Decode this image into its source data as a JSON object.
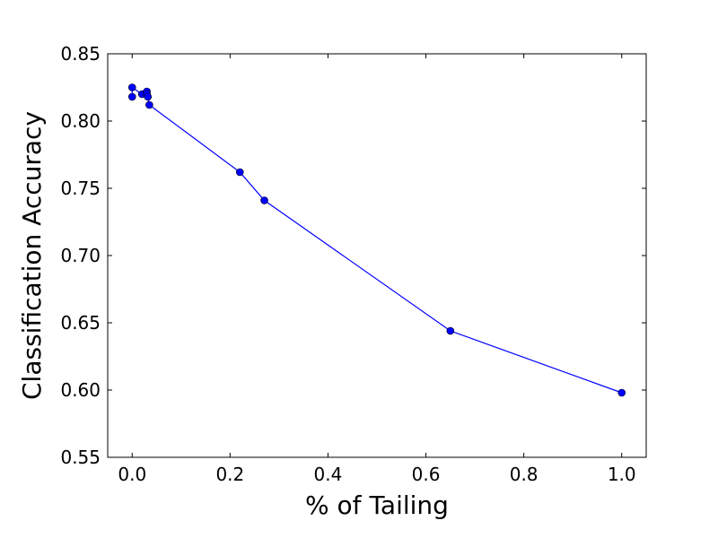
{
  "chart_data": {
    "type": "line",
    "xlabel": "% of Tailing",
    "ylabel": "Classification Accuracy",
    "xlim": [
      -0.05,
      1.05
    ],
    "ylim": [
      0.55,
      0.85
    ],
    "xticks": [
      0.0,
      0.2,
      0.4,
      0.6,
      0.8,
      1.0
    ],
    "xtick_labels": [
      "0.0",
      "0.2",
      "0.4",
      "0.6",
      "0.8",
      "1.0"
    ],
    "yticks": [
      0.55,
      0.6,
      0.65,
      0.7,
      0.75,
      0.8,
      0.85
    ],
    "ytick_labels": [
      "0.55",
      "0.60",
      "0.65",
      "0.70",
      "0.75",
      "0.80",
      "0.85"
    ],
    "grid": false,
    "legend": "none",
    "color": "#0000ff",
    "series": [
      {
        "marker": "circle",
        "x": [
          0.0,
          0.0,
          0.02,
          0.03,
          0.03,
          0.032,
          0.035,
          0.22,
          0.27,
          0.65,
          1.0
        ],
        "y": [
          0.818,
          0.825,
          0.82,
          0.822,
          0.82,
          0.818,
          0.812,
          0.762,
          0.741,
          0.644,
          0.598
        ]
      }
    ]
  }
}
